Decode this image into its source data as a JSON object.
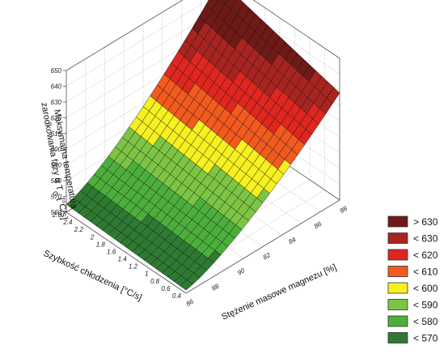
{
  "chart_data": {
    "type": "surface3d",
    "title": "",
    "xlabel": "Stężenie masowe magnezu [%]",
    "ylabel": "Szybkość chłodzenia [°C/s]",
    "zlabel_lines": [
      "Maksymalna temperatura",
      "zarodkowania fazy α T",
      "[°C/s]"
    ],
    "zlabel_subscript": "G",
    "x_ticks": [
      "86",
      "88",
      "90",
      "82",
      "84",
      "86",
      "88"
    ],
    "y_ticks": [
      "2.6",
      "2.4",
      "2.2",
      "2",
      "1.8",
      "1.6",
      "1.4",
      "1.2",
      "1",
      "0.8",
      "0.6",
      "0.4"
    ],
    "z_ticks": [
      "560",
      "570",
      "580",
      "590",
      "600",
      "610",
      "620",
      "630",
      "640",
      "650"
    ],
    "zlim": [
      560,
      650
    ],
    "surface": {
      "corners": {
        "front_left": 565,
        "front_right": 562,
        "back_left": 648,
        "back_right": 628
      },
      "rows": 22,
      "cols": 20
    },
    "legend": [
      {
        "label": "> 630",
        "color": "#6e1a16"
      },
      {
        "label": "< 630",
        "color": "#a82420"
      },
      {
        "label": "< 620",
        "color": "#e0261f"
      },
      {
        "label": "< 610",
        "color": "#f25a1e"
      },
      {
        "label": "< 600",
        "color": "#f7f020"
      },
      {
        "label": "< 590",
        "color": "#7cc544"
      },
      {
        "label": "< 580",
        "color": "#4caf3c"
      },
      {
        "label": "< 570",
        "color": "#2f7a32"
      }
    ]
  }
}
